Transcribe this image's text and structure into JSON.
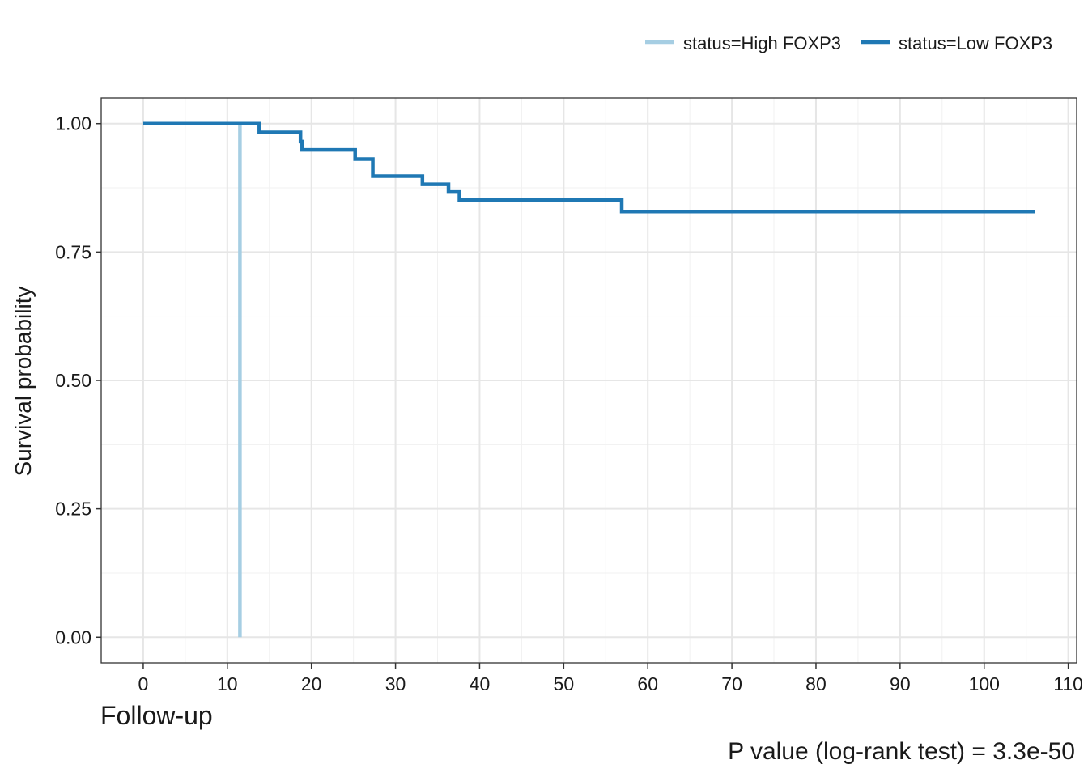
{
  "chart_data": {
    "type": "line",
    "subtype": "kaplan-meier step",
    "title": "",
    "xlabel": "Follow-up",
    "ylabel": "Survival probability",
    "caption": "P value (log-rank test) = 3.3e-50",
    "xlim": [
      -5,
      111
    ],
    "ylim": [
      -0.05,
      1.05
    ],
    "x_ticks": [
      0,
      10,
      20,
      30,
      40,
      50,
      60,
      70,
      80,
      90,
      100,
      110
    ],
    "y_ticks": [
      0.0,
      0.25,
      0.5,
      0.75,
      1.0
    ],
    "x_tick_labels": [
      "0",
      "10",
      "20",
      "30",
      "40",
      "50",
      "60",
      "70",
      "80",
      "90",
      "100",
      "110"
    ],
    "y_tick_labels": [
      "0.00",
      "0.25",
      "0.50",
      "0.75",
      "1.00"
    ],
    "grid": true,
    "legend_position": "top-right",
    "series": [
      {
        "name": "status=High FOXP3",
        "color": "#a6cee3",
        "x": [
          11.5,
          11.5
        ],
        "y": [
          1.0,
          0.0
        ]
      },
      {
        "name": "status=Low FOXP3",
        "color": "#1f78b4",
        "x": [
          0,
          13.8,
          18.7,
          18.9,
          25.2,
          27.3,
          33.2,
          36.3,
          37.6,
          56.9,
          106
        ],
        "y": [
          1.0,
          0.983,
          0.965,
          0.949,
          0.931,
          0.898,
          0.882,
          0.867,
          0.851,
          0.829,
          0.829
        ]
      }
    ]
  }
}
